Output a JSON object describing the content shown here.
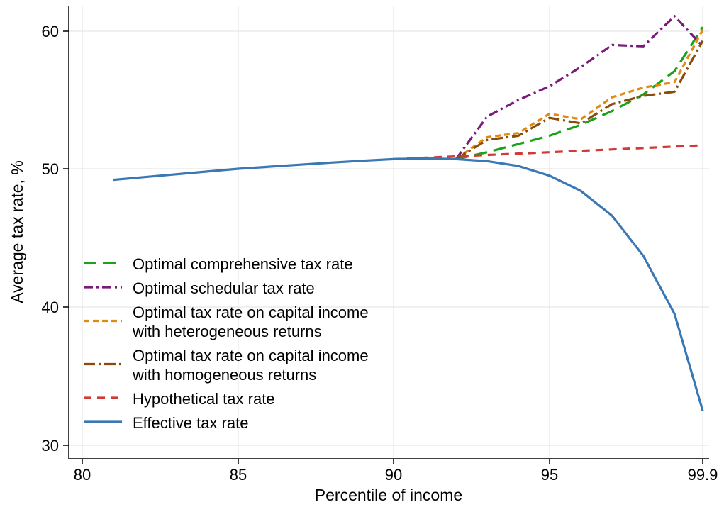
{
  "chart_data": {
    "type": "line",
    "xlabel": "Percentile of income",
    "ylabel": "Average tax rate, %",
    "xlim": [
      79.8,
      99.9
    ],
    "ylim": [
      29,
      62
    ],
    "grid": true,
    "legend_placement": "bottom-left",
    "x_ticks": [
      {
        "value": 80,
        "label": "80"
      },
      {
        "value": 85,
        "label": "85"
      },
      {
        "value": 90,
        "label": "90"
      },
      {
        "value": 95,
        "label": "95"
      },
      {
        "value": 99.9,
        "label": "99.9"
      }
    ],
    "y_ticks": [
      {
        "value": 30,
        "label": "30"
      },
      {
        "value": 40,
        "label": "40"
      },
      {
        "value": 50,
        "label": "50"
      },
      {
        "value": 60,
        "label": "60"
      }
    ],
    "series": [
      {
        "name": "Optimal comprehensive tax rate",
        "color": "#1aa31a",
        "dash": "long-dash",
        "x": [
          92,
          93,
          94,
          95,
          96,
          97,
          98,
          99,
          99.9
        ],
        "y": [
          50.7,
          51.2,
          51.8,
          52.4,
          53.2,
          54.2,
          55.4,
          57.1,
          60.3
        ]
      },
      {
        "name": "Optimal schedular tax rate",
        "color": "#7a1a7a",
        "dash": "dash-dot",
        "x": [
          92,
          93,
          94,
          95,
          96,
          97,
          98,
          99,
          99.9
        ],
        "y": [
          50.7,
          53.8,
          55.0,
          56.0,
          57.4,
          59.0,
          58.9,
          61.1,
          58.9
        ]
      },
      {
        "name": "Optimal tax rate on capital income with heterogeneous returns",
        "color": "#e08a10",
        "dash": "short-dash",
        "x": [
          92,
          93,
          94,
          95,
          96,
          97,
          98,
          99,
          99.9
        ],
        "y": [
          50.7,
          52.3,
          52.6,
          54.0,
          53.6,
          55.2,
          55.9,
          56.3,
          60.1
        ]
      },
      {
        "name": "Optimal tax rate on capital income with homogeneous returns",
        "color": "#8b4c0a",
        "dash": "long-dash-dot",
        "x": [
          92,
          93,
          94,
          95,
          96,
          97,
          98,
          99,
          99.9
        ],
        "y": [
          50.7,
          52.1,
          52.4,
          53.7,
          53.3,
          54.7,
          55.3,
          55.6,
          59.3
        ]
      },
      {
        "name": "Hypothetical tax rate",
        "color": "#d23a36",
        "dash": "dash",
        "x": [
          90,
          92,
          95,
          99.9
        ],
        "y": [
          50.7,
          50.9,
          51.2,
          51.7
        ]
      },
      {
        "name": "Effective tax rate",
        "color": "#3a78b5",
        "dash": "solid",
        "x": [
          81,
          82,
          83,
          84,
          85,
          86,
          87,
          88,
          89,
          90,
          91,
          92,
          93,
          94,
          95,
          96,
          97,
          98,
          99,
          99.9
        ],
        "y": [
          49.2,
          49.4,
          49.6,
          49.8,
          50.0,
          50.15,
          50.3,
          50.45,
          50.58,
          50.7,
          50.75,
          50.7,
          50.55,
          50.2,
          49.5,
          48.4,
          46.6,
          43.7,
          39.5,
          32.5
        ]
      }
    ],
    "legend": [
      {
        "label_lines": [
          "Optimal comprehensive tax rate"
        ],
        "series": 0
      },
      {
        "label_lines": [
          "Optimal schedular tax rate"
        ],
        "series": 1
      },
      {
        "label_lines": [
          "Optimal tax rate on capital income",
          "with heterogeneous returns"
        ],
        "series": 2
      },
      {
        "label_lines": [
          "Optimal tax rate on capital income",
          "with homogeneous returns"
        ],
        "series": 3
      },
      {
        "label_lines": [
          "Hypothetical tax rate"
        ],
        "series": 4
      },
      {
        "label_lines": [
          "Effective tax rate"
        ],
        "series": 5
      }
    ]
  }
}
